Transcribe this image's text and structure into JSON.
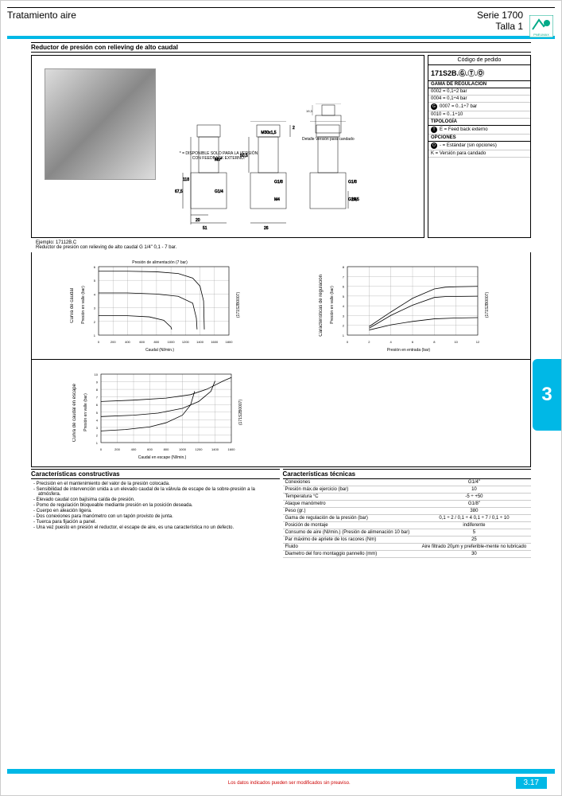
{
  "header": {
    "left": "Tratamiento aire",
    "right1": "Serie 1700",
    "right2": "Talla 1",
    "logo_text": "PNEUMAX"
  },
  "section_title": "Reductor de presión con relieving de alto caudal",
  "note1": "* = DISPONIBLE SOLO PARA LA VERSIÓN CON FEEDBACK EXTERNO.",
  "note2": "Detalle Versión para candado",
  "dims": {
    "d1": "31,7",
    "d2": "19,3",
    "d3": "45",
    "d4": "45",
    "d5": "2",
    "d6": "M30x1,5",
    "d7": "50,5",
    "d8": "118",
    "d9": "67,5",
    "d10": "20",
    "d11": "51",
    "d12": "26",
    "d13": "26,5",
    "p1": "M5*",
    "p2": "G1/4",
    "p3": "G1/8",
    "p4": "M4",
    "p5": "G1/8",
    "p6": "G1/4"
  },
  "order": {
    "title": "Código de pedido",
    "code": "171S2B.Ⓖ.Ⓣ.Ⓞ",
    "sec1": "GAMA DE REGULACIÓN",
    "r1": "0002 = 0,1÷2 bar",
    "r2": "0004 = 0,1÷4 bar",
    "r3": "0007 = 0..1÷7 bar",
    "r4": "0010 = 0..1÷10",
    "sec2": "TIPOLOGÍA",
    "r5": "E = Feed back externo",
    "sec3": "OPCIONES",
    "r6": "- = Estándar (sin opciones)",
    "r7": "K = Versión para candado"
  },
  "example": {
    "l1": "Ejemplo: 17112B.C",
    "l2": "Reductor de presión con relieving de alto caudal G 1/4\" 0,1 - 7 bar."
  },
  "chart1": {
    "side_label": "Curva de caudal",
    "title": "Presión de alimentación (7 bar)",
    "ylabel": "Presión en valle (bar)",
    "xlabel": "Caudal (Nl/min.)",
    "ref": "(171S2B0007)",
    "xticks": [
      "0",
      "200",
      "400",
      "600",
      "800",
      "1000",
      "1200",
      "1400",
      "1600",
      "1800"
    ],
    "yticks": [
      "1",
      "2",
      "3",
      "4",
      "5",
      "6"
    ],
    "lines": [
      [
        [
          0,
          6.1
        ],
        [
          400,
          6.1
        ],
        [
          800,
          6.05
        ],
        [
          1100,
          5.9
        ],
        [
          1300,
          5.5
        ],
        [
          1400,
          4.8
        ],
        [
          1450,
          3.5
        ],
        [
          1460,
          1
        ]
      ],
      [
        [
          0,
          4.2
        ],
        [
          400,
          4.2
        ],
        [
          800,
          4.1
        ],
        [
          1100,
          3.9
        ],
        [
          1300,
          3.3
        ],
        [
          1350,
          2
        ],
        [
          1360,
          1
        ]
      ],
      [
        [
          0,
          2.2
        ],
        [
          400,
          2.2
        ],
        [
          700,
          2.1
        ],
        [
          900,
          1.8
        ],
        [
          1000,
          1.2
        ],
        [
          1010,
          1
        ]
      ]
    ],
    "xmax": 1800,
    "ymin": 0.5,
    "ymax": 6.5
  },
  "chart2": {
    "side_label": "Características de regulación",
    "ylabel": "Presión en valle (bar)",
    "xlabel": "Presión en entrada (bar)",
    "ref": "(171S2B0007)",
    "xticks": [
      "0",
      "2",
      "4",
      "6",
      "8",
      "10",
      "12"
    ],
    "yticks": [
      "1",
      "2",
      "3",
      "4",
      "5",
      "6",
      "7",
      "8"
    ],
    "lines": [
      [
        [
          2,
          1.5
        ],
        [
          4,
          3.2
        ],
        [
          6,
          4.8
        ],
        [
          8,
          5.9
        ],
        [
          9,
          6.1
        ],
        [
          10,
          6.15
        ],
        [
          12,
          6.2
        ]
      ],
      [
        [
          2,
          1.3
        ],
        [
          4,
          2.8
        ],
        [
          6,
          4.0
        ],
        [
          8,
          4.9
        ],
        [
          9,
          5.0
        ],
        [
          12,
          5.05
        ]
      ],
      [
        [
          2,
          1.1
        ],
        [
          4,
          1.7
        ],
        [
          6,
          2.1
        ],
        [
          8,
          2.4
        ],
        [
          10,
          2.5
        ],
        [
          12,
          2.55
        ]
      ]
    ],
    "xmax": 12,
    "ymin": 0.5,
    "ymax": 8.5
  },
  "chart3": {
    "side_label": "Curva de caudal en escape",
    "ylabel": "Presión en valle (bar)",
    "xlabel": "Caudal en escape (Nl/min.)",
    "ref": "(171S2B0007)",
    "xticks": [
      "0",
      "200",
      "400",
      "600",
      "800",
      "1000",
      "1200",
      "1400",
      "1600"
    ],
    "yticks": [
      "1",
      "2",
      "3",
      "4",
      "5",
      "6",
      "7",
      "8",
      "9",
      "10"
    ],
    "lines": [
      [
        [
          0,
          6.5
        ],
        [
          400,
          6.7
        ],
        [
          800,
          7.0
        ],
        [
          1100,
          7.5
        ],
        [
          1300,
          8.3
        ],
        [
          1500,
          9.5
        ],
        [
          1600,
          10
        ]
      ],
      [
        [
          0,
          4.3
        ],
        [
          400,
          4.5
        ],
        [
          700,
          4.8
        ],
        [
          1000,
          5.5
        ],
        [
          1200,
          6.5
        ],
        [
          1350,
          8
        ],
        [
          1400,
          9.5
        ]
      ],
      [
        [
          0,
          2.2
        ],
        [
          300,
          2.4
        ],
        [
          600,
          2.8
        ],
        [
          800,
          3.4
        ],
        [
          1000,
          4.5
        ],
        [
          1100,
          6
        ],
        [
          1150,
          8
        ]
      ]
    ],
    "xmax": 1600,
    "ymin": 0.5,
    "ymax": 10.5
  },
  "tab_number": "3",
  "chars_construct": {
    "title": "Características constructivas",
    "items": [
      "Precisión en el mantenimiento del valor de la presión colocada.",
      "Sensibilidad de intervención unida a un elevado caudal de la válvula de escape de la sobre-presión a la atmósfera.",
      "Elevado caudal con bajísima caída de presión.",
      "Pomo de regulación bloqueable mediante presión en la posición deseada.",
      "Cuerpo en aleación ligera.",
      "Dos conexiones para manómetro con un tapón provisto de junta.",
      "Tuerca para fijación a panel.",
      "Una vez puesto en presión el reductor, el escape de aire, es una característica no un defecto."
    ]
  },
  "chars_tech": {
    "title": "Características técnicas",
    "rows": [
      [
        "Conexiones",
        "G1/4\""
      ],
      [
        "Presión máx.de ejercicio (bar)",
        "10"
      ],
      [
        "Temperatura °C",
        "-5 ÷ +50"
      ],
      [
        "Ataque manómetro",
        "G1/8\""
      ],
      [
        "Peso (gr.)",
        "380"
      ],
      [
        "Gama de regulación de la presión (bar)",
        "0,1 ÷ 2 / 0,1 ÷ 4\n0,1 ÷ 7 / 0,1 ÷ 10"
      ],
      [
        "Posición de montaje",
        "indiferente"
      ],
      [
        "Consumo de aire (Nl/min.) (Presión de alimenación 10 bar)",
        "5"
      ],
      [
        "Par máximo de apriete de los racores (Nm)",
        "25"
      ],
      [
        "Fluido",
        "Aire filtrado 20μm y preferible-mente no lubricado"
      ],
      [
        "Diametro del foro montaggio pannello (mm)",
        "30"
      ]
    ]
  },
  "footer": {
    "warn": "Los datos indicados pueden ser modificados sin preaviso.",
    "page": "3.17"
  },
  "colors": {
    "cyan": "#00b8e6",
    "grid": "#999999",
    "line": "#000000"
  }
}
